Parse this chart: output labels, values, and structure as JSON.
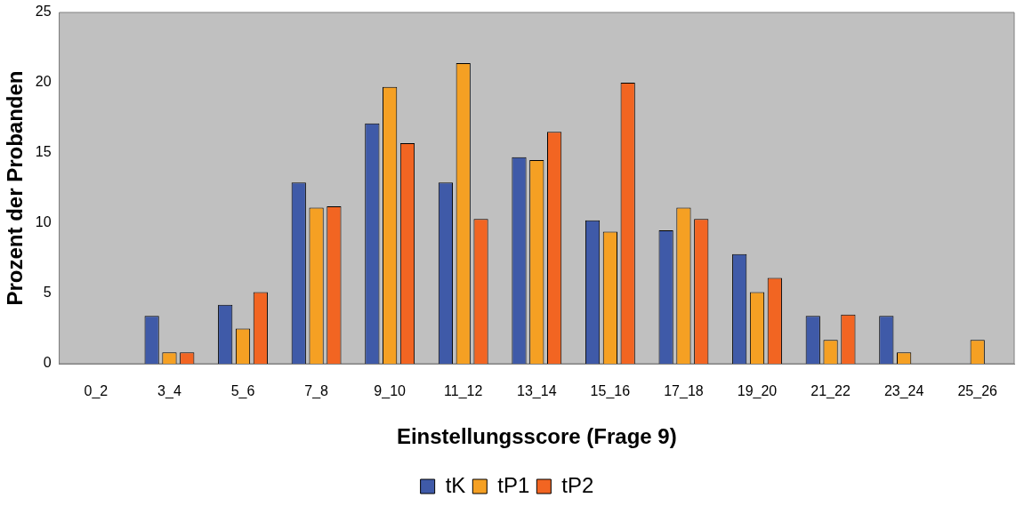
{
  "chart_data": {
    "type": "bar",
    "xlabel": "Einstellungsscore (Frage 9)",
    "ylabel": "Prozent der Probanden",
    "categories": [
      "0_2",
      "3_4",
      "5_6",
      "7_8",
      "9_10",
      "11_12",
      "13_14",
      "15_16",
      "17_18",
      "19_20",
      "21_22",
      "23_24",
      "25_26"
    ],
    "series": [
      {
        "name": "tK",
        "color": "#3f5aa8",
        "values": [
          0,
          3.4,
          4.2,
          12.9,
          17.1,
          12.9,
          14.7,
          10.2,
          9.5,
          7.8,
          3.4,
          3.4,
          0
        ]
      },
      {
        "name": "tP1",
        "color": "#f5a023",
        "values": [
          0,
          0.8,
          2.5,
          11.1,
          19.7,
          21.4,
          14.5,
          9.4,
          11.1,
          5.1,
          1.7,
          0.8,
          1.7
        ]
      },
      {
        "name": "tP2",
        "color": "#f26522",
        "values": [
          0,
          0.8,
          5.1,
          11.2,
          15.7,
          10.3,
          16.5,
          20,
          10.3,
          6.1,
          3.5,
          0,
          0
        ]
      }
    ],
    "ylim": [
      0,
      25
    ],
    "yticks": [
      0,
      5,
      10,
      15,
      20,
      25
    ],
    "grid": false,
    "legend": "bottom"
  }
}
